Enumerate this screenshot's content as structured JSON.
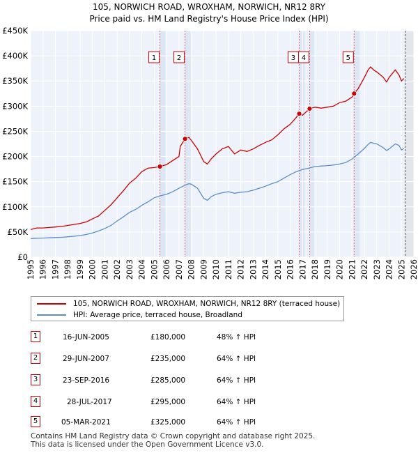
{
  "chart_data": {
    "type": "line",
    "title": "105, NORWICH ROAD, WROXHAM, NORWICH, NR12 8RY",
    "subtitle": "Price paid vs. HM Land Registry's House Price Index (HPI)",
    "xlim": [
      1995,
      2026
    ],
    "ylim": [
      0,
      450000
    ],
    "x_ticks": [
      1995,
      1996,
      1997,
      1998,
      1999,
      2000,
      2001,
      2002,
      2003,
      2004,
      2005,
      2006,
      2007,
      2008,
      2009,
      2010,
      2011,
      2012,
      2013,
      2014,
      2015,
      2016,
      2017,
      2018,
      2019,
      2020,
      2021,
      2022,
      2023,
      2024,
      2025,
      2026
    ],
    "y_ticks": [
      {
        "value": 0,
        "label": "£0"
      },
      {
        "value": 50000,
        "label": "£50K"
      },
      {
        "value": 100000,
        "label": "£100K"
      },
      {
        "value": 150000,
        "label": "£150K"
      },
      {
        "value": 200000,
        "label": "£200K"
      },
      {
        "value": 250000,
        "label": "£250K"
      },
      {
        "value": 300000,
        "label": "£300K"
      },
      {
        "value": 350000,
        "label": "£350K"
      },
      {
        "value": 400000,
        "label": "£400K"
      },
      {
        "value": 450000,
        "label": "£450K"
      }
    ],
    "future_shade_from": 2025.3,
    "series": [
      {
        "name": "105, NORWICH ROAD, WROXHAM, NORWICH, NR12 8RY (terraced house)",
        "color": "#cc0000",
        "x": [
          1995,
          1995.5,
          1996,
          1996.5,
          1997,
          1997.5,
          1998,
          1998.5,
          1999,
          1999.5,
          2000,
          2000.5,
          2001,
          2001.5,
          2002,
          2002.5,
          2003,
          2003.5,
          2004,
          2004.5,
          2005,
          2005.46,
          2006,
          2006.5,
          2007,
          2007.1,
          2007.49,
          2007.8,
          2008,
          2008.5,
          2009,
          2009.3,
          2009.6,
          2010,
          2010.5,
          2011,
          2011.5,
          2012,
          2012.5,
          2013,
          2013.5,
          2014,
          2014.5,
          2015,
          2015.5,
          2016,
          2016.5,
          2016.73,
          2017,
          2017.57,
          2018,
          2018.5,
          2019,
          2019.5,
          2020,
          2020.5,
          2021,
          2021.17,
          2021.5,
          2022,
          2022.3,
          2022.5,
          2022.8,
          2023,
          2023.5,
          2023.8,
          2024,
          2024.5,
          2024.8,
          2025,
          2025.2
        ],
        "y": [
          55000,
          58000,
          58000,
          59000,
          60000,
          61000,
          63000,
          65000,
          67000,
          70000,
          76000,
          82000,
          93000,
          104000,
          118000,
          132000,
          147000,
          157000,
          170000,
          177000,
          178000,
          180000,
          184000,
          192000,
          200000,
          220000,
          235000,
          238000,
          232000,
          215000,
          190000,
          185000,
          195000,
          205000,
          215000,
          220000,
          205000,
          213000,
          210000,
          215000,
          222000,
          228000,
          233000,
          243000,
          255000,
          264000,
          278000,
          285000,
          282000,
          295000,
          298000,
          296000,
          298000,
          300000,
          307000,
          310000,
          318000,
          325000,
          335000,
          357000,
          372000,
          378000,
          371000,
          368000,
          358000,
          348000,
          357000,
          372000,
          362000,
          350000,
          355000
        ]
      },
      {
        "name": "HPI: Average price, terraced house, Broadland",
        "color": "#5b8fc9",
        "x": [
          1995,
          1995.5,
          1996,
          1996.5,
          1997,
          1997.5,
          1998,
          1998.5,
          1999,
          1999.5,
          2000,
          2000.5,
          2001,
          2001.5,
          2002,
          2002.5,
          2003,
          2003.5,
          2004,
          2004.5,
          2005,
          2005.5,
          2006,
          2006.5,
          2007,
          2007.5,
          2007.8,
          2008,
          2008.5,
          2009,
          2009.3,
          2009.6,
          2010,
          2010.5,
          2011,
          2011.5,
          2012,
          2012.5,
          2013,
          2013.5,
          2014,
          2014.5,
          2015,
          2015.5,
          2016,
          2016.5,
          2017,
          2017.5,
          2018,
          2018.5,
          2019,
          2019.5,
          2020,
          2020.5,
          2021,
          2021.5,
          2022,
          2022.3,
          2022.5,
          2022.8,
          2023,
          2023.5,
          2023.8,
          2024,
          2024.5,
          2024.8,
          2025,
          2025.2
        ],
        "y": [
          37000,
          37500,
          38000,
          38500,
          39000,
          39500,
          40500,
          41500,
          43000,
          45000,
          48000,
          52000,
          57000,
          63000,
          72000,
          80000,
          89000,
          95000,
          103000,
          110000,
          118000,
          122000,
          125000,
          130000,
          137000,
          143000,
          146000,
          145000,
          137000,
          117000,
          113000,
          120000,
          125000,
          128000,
          130000,
          127000,
          129000,
          130000,
          133000,
          137000,
          141000,
          146000,
          150000,
          157000,
          164000,
          170000,
          174000,
          177000,
          180000,
          181000,
          182000,
          183000,
          185000,
          188000,
          195000,
          205000,
          216000,
          224000,
          228000,
          226000,
          225000,
          218000,
          212000,
          215000,
          225000,
          222000,
          213000,
          216000
        ]
      }
    ],
    "markers": [
      {
        "label": "1",
        "x": 2005.46,
        "y": 180000
      },
      {
        "label": "2",
        "x": 2007.49,
        "y": 235000
      },
      {
        "label": "3",
        "x": 2016.73,
        "y": 285000
      },
      {
        "label": "4",
        "x": 2017.57,
        "y": 295000
      },
      {
        "label": "5",
        "x": 2021.17,
        "y": 325000
      }
    ]
  },
  "legend": {
    "property_label": "105, NORWICH ROAD, WROXHAM, NORWICH, NR12 8RY (terraced house)",
    "hpi_label": "HPI: Average price, terraced house, Broadland"
  },
  "transactions": [
    {
      "num": "1",
      "date": "16-JUN-2005",
      "price": "£180,000",
      "hpi": "48% ↑ HPI"
    },
    {
      "num": "2",
      "date": "29-JUN-2007",
      "price": "£235,000",
      "hpi": "64% ↑ HPI"
    },
    {
      "num": "3",
      "date": "23-SEP-2016",
      "price": "£285,000",
      "hpi": "64% ↑ HPI"
    },
    {
      "num": "4",
      "date": "28-JUL-2017",
      "price": "£295,000",
      "hpi": "64% ↑ HPI"
    },
    {
      "num": "5",
      "date": "05-MAR-2021",
      "price": "£325,000",
      "hpi": "64% ↑ HPI"
    }
  ],
  "footer": {
    "line1": "Contains HM Land Registry data © Crown copyright and database right 2025.",
    "line2": "This data is licensed under the Open Government Licence v3.0."
  }
}
